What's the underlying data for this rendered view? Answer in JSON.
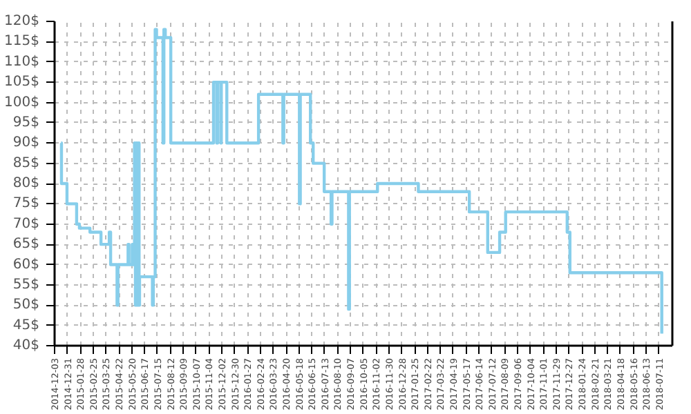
{
  "chart_data": {
    "type": "step",
    "color": "#87ceeb",
    "grid": true,
    "x": [
      "2014-12-17",
      "2014-12-18",
      "2014-12-30",
      "2015-01-20",
      "2015-01-26",
      "2015-02-18",
      "2015-03-14",
      "2015-04-01",
      "2015-04-04",
      "2015-04-18",
      "2015-04-20",
      "2015-05-12",
      "2015-05-14",
      "2015-05-21",
      "2015-05-23",
      "2015-05-26",
      "2015-05-28",
      "2015-05-30",
      "2015-06-01",
      "2015-06-03",
      "2015-06-05",
      "2015-06-06",
      "2015-07-04",
      "2015-07-06",
      "2015-07-10",
      "2015-07-13",
      "2015-07-27",
      "2015-07-29",
      "2015-08-01",
      "2015-08-13",
      "2015-11-14",
      "2015-11-21",
      "2015-11-23",
      "2015-11-30",
      "2015-12-01",
      "2015-12-13",
      "2016-02-20",
      "2016-04-13",
      "2016-04-15",
      "2016-05-19",
      "2016-05-21",
      "2016-06-12",
      "2016-06-18",
      "2016-07-12",
      "2016-07-27",
      "2016-07-29",
      "2016-09-03",
      "2016-09-05",
      "2016-11-05",
      "2017-02-02",
      "2017-05-24",
      "2017-07-03",
      "2017-07-29",
      "2017-08-11",
      "2017-12-23",
      "2017-12-29",
      "2018-07-17"
    ],
    "values": [
      90,
      80,
      75,
      70,
      69,
      68,
      65,
      68,
      60,
      50,
      60,
      65,
      60,
      65,
      60,
      90,
      50,
      90,
      50,
      90,
      50,
      57,
      50,
      57,
      118,
      116,
      90,
      118,
      116,
      90,
      105,
      90,
      105,
      90,
      105,
      90,
      102,
      90,
      102,
      75,
      102,
      90,
      85,
      78,
      70,
      78,
      49,
      78,
      80,
      78,
      73,
      63,
      68,
      73,
      68,
      58,
      43
    ],
    "xlim": [
      "2014-12-03",
      "2018-08-09"
    ],
    "xticks": [
      "2014-12-03",
      "2014-12-31",
      "2015-01-28",
      "2015-02-25",
      "2015-03-25",
      "2015-04-22",
      "2015-05-20",
      "2015-06-17",
      "2015-07-15",
      "2015-08-12",
      "2015-09-09",
      "2015-10-07",
      "2015-11-04",
      "2015-12-02",
      "2015-12-30",
      "2016-01-27",
      "2016-02-24",
      "2016-03-23",
      "2016-04-20",
      "2016-05-18",
      "2016-06-15",
      "2016-07-13",
      "2016-08-10",
      "2016-09-07",
      "2016-10-05",
      "2016-11-02",
      "2016-11-30",
      "2016-12-28",
      "2017-01-25",
      "2017-02-22",
      "2017-03-22",
      "2017-04-19",
      "2017-05-17",
      "2017-06-14",
      "2017-07-12",
      "2017-08-09",
      "2017-09-06",
      "2017-10-04",
      "2017-11-01",
      "2017-11-29",
      "2017-12-27",
      "2018-01-24",
      "2018-02-21",
      "2018-03-21",
      "2018-04-18",
      "2018-05-16",
      "2018-06-13",
      "2018-07-11"
    ],
    "ylim": [
      40,
      120
    ],
    "yticks": [
      {
        "value": 40,
        "label": "40$"
      },
      {
        "value": 45,
        "label": "45$"
      },
      {
        "value": 50,
        "label": "50$"
      },
      {
        "value": 55,
        "label": "55$"
      },
      {
        "value": 60,
        "label": "60$"
      },
      {
        "value": 65,
        "label": "65$"
      },
      {
        "value": 70,
        "label": "70$"
      },
      {
        "value": 75,
        "label": "75$"
      },
      {
        "value": 80,
        "label": "80$"
      },
      {
        "value": 85,
        "label": "85$"
      },
      {
        "value": 90,
        "label": "90$"
      },
      {
        "value": 95,
        "label": "95$"
      },
      {
        "value": 100,
        "label": "100$"
      },
      {
        "value": 105,
        "label": "105$"
      },
      {
        "value": 110,
        "label": "110$"
      },
      {
        "value": 115,
        "label": "115$"
      },
      {
        "value": 120,
        "label": "120$"
      }
    ]
  }
}
